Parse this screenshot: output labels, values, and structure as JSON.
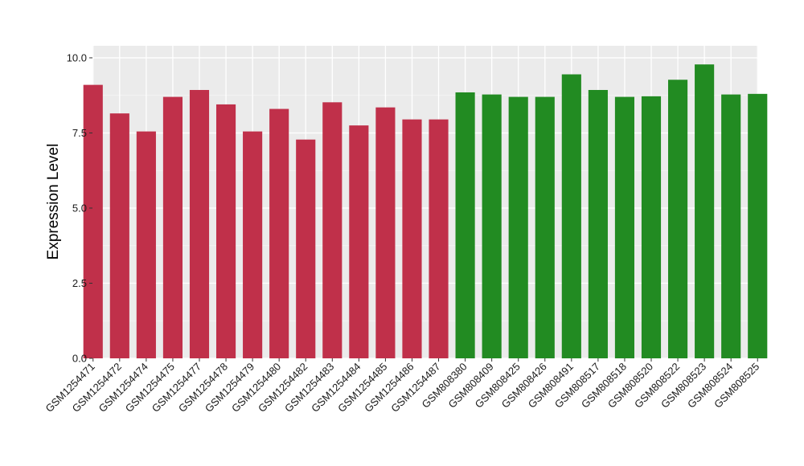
{
  "chart_data": {
    "type": "bar",
    "ylabel": "Expression Level",
    "xlabel": "",
    "ylim": [
      0,
      10.4
    ],
    "yticks": [
      0,
      2.5,
      5,
      7.5,
      10
    ],
    "ytick_labels": [
      "0.0",
      "2.5",
      "5.0",
      "7.5",
      "10.0"
    ],
    "grid": true,
    "background": "#EBEBEB",
    "categories": [
      "GSM1254471",
      "GSM1254472",
      "GSM1254474",
      "GSM1254475",
      "GSM1254477",
      "GSM1254478",
      "GSM1254479",
      "GSM1254480",
      "GSM1254482",
      "GSM1254483",
      "GSM1254484",
      "GSM1254485",
      "GSM1254486",
      "GSM1254487",
      "GSM808380",
      "GSM808409",
      "GSM808425",
      "GSM808426",
      "GSM808491",
      "GSM808517",
      "GSM808518",
      "GSM808520",
      "GSM808522",
      "GSM808523",
      "GSM808524",
      "GSM808525"
    ],
    "values": [
      9.1,
      8.15,
      7.55,
      8.7,
      8.93,
      8.45,
      7.55,
      8.3,
      7.28,
      8.52,
      7.75,
      8.35,
      7.95,
      7.95,
      8.85,
      8.78,
      8.7,
      8.7,
      9.45,
      8.93,
      8.7,
      8.72,
      9.27,
      9.78,
      8.78,
      8.8
    ],
    "colors": [
      "#C0304A",
      "#C0304A",
      "#C0304A",
      "#C0304A",
      "#C0304A",
      "#C0304A",
      "#C0304A",
      "#C0304A",
      "#C0304A",
      "#C0304A",
      "#C0304A",
      "#C0304A",
      "#C0304A",
      "#C0304A",
      "#228B22",
      "#228B22",
      "#228B22",
      "#228B22",
      "#228B22",
      "#228B22",
      "#228B22",
      "#228B22",
      "#228B22",
      "#228B22",
      "#228B22",
      "#228B22"
    ]
  }
}
